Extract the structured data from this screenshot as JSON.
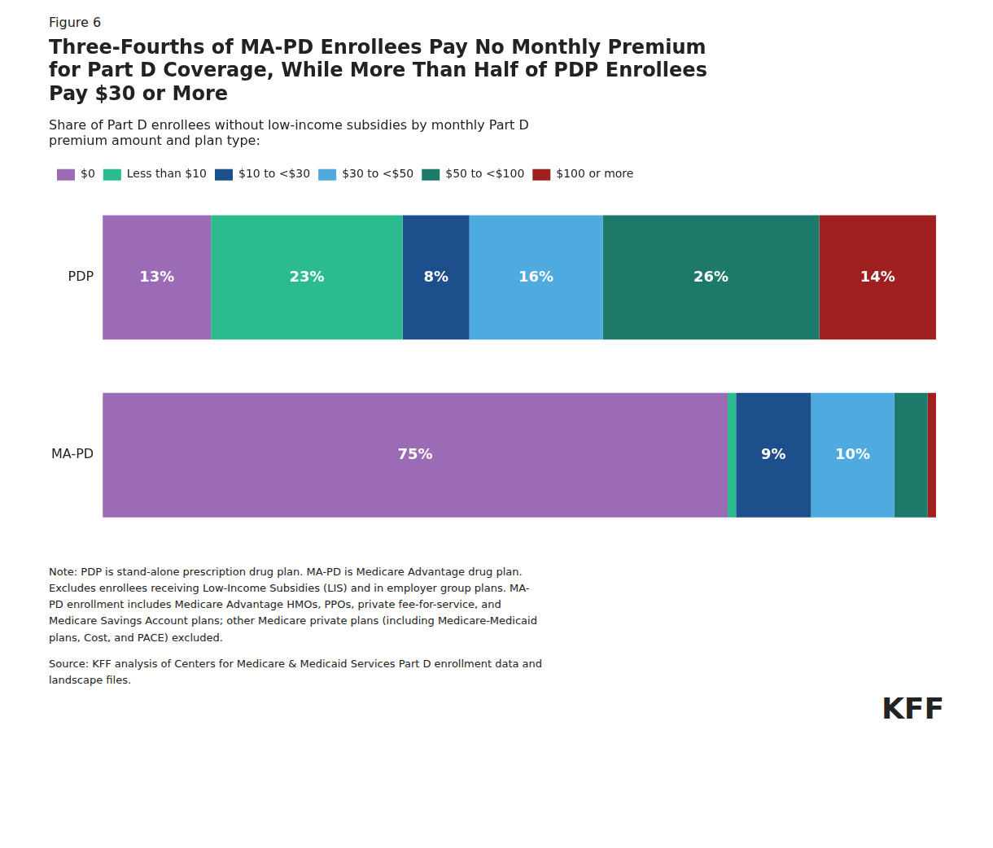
{
  "chart_data": {
    "type": "bar",
    "orientation": "horizontal",
    "stacked": true,
    "title": "Three-Fourths of MA-PD Enrollees Pay No Monthly Premium\nfor Part D Coverage, While More Than Half of PDP Enrollees\nPay $30 or More",
    "subtitle": "Share of Part D enrollees without low-income subsidies by monthly Part D\npremium amount and plan type:",
    "categories": [
      "PDP",
      "MA-PD"
    ],
    "series": [
      {
        "name": "$0",
        "color": "#9b6bb5",
        "values": [
          13,
          75
        ],
        "value_labels": [
          "13%",
          "75%"
        ]
      },
      {
        "name": "Less than $10",
        "color": "#2bbb8f",
        "values": [
          23,
          1
        ],
        "value_labels": [
          "23%",
          null
        ]
      },
      {
        "name": "$10 to <$30",
        "color": "#1d4f8c",
        "values": [
          8,
          9
        ],
        "value_labels": [
          "8%",
          "9%"
        ]
      },
      {
        "name": "$30 to <$50",
        "color": "#4eaadf",
        "values": [
          16,
          10
        ],
        "value_labels": [
          "16%",
          "10%"
        ]
      },
      {
        "name": "$50 to <$100",
        "color": "#1d7a6a",
        "values": [
          26,
          4
        ],
        "value_labels": [
          "26%",
          null
        ]
      },
      {
        "name": "$100 or more",
        "color": "#a02020",
        "values": [
          14,
          1
        ],
        "value_labels": [
          "14%",
          null
        ]
      }
    ],
    "xlim": [
      0,
      100
    ],
    "grid": false,
    "tick_labels": "y",
    "legend": "top",
    "data_labels": true,
    "annotations": [
      "Figure 6",
      "Note: PDP is stand-alone prescription drug plan. MA-PD is Medicare Advantage drug plan.\nExcludes enrollees receiving Low-Income Subsidies (LIS) and in employer group plans. MA-\nPD enrollment includes Medicare Advantage HMOs, PPOs, private fee-for-service, and\nMedicare Savings Account plans; other Medicare private plans (including Medicare-Medicaid\nplans, Cost, and PACE) excluded.",
      "Source: KFF analysis of Centers for Medicare & Medicaid Services Part D enrollment data and\nlandscape files.",
      "KFF"
    ]
  }
}
